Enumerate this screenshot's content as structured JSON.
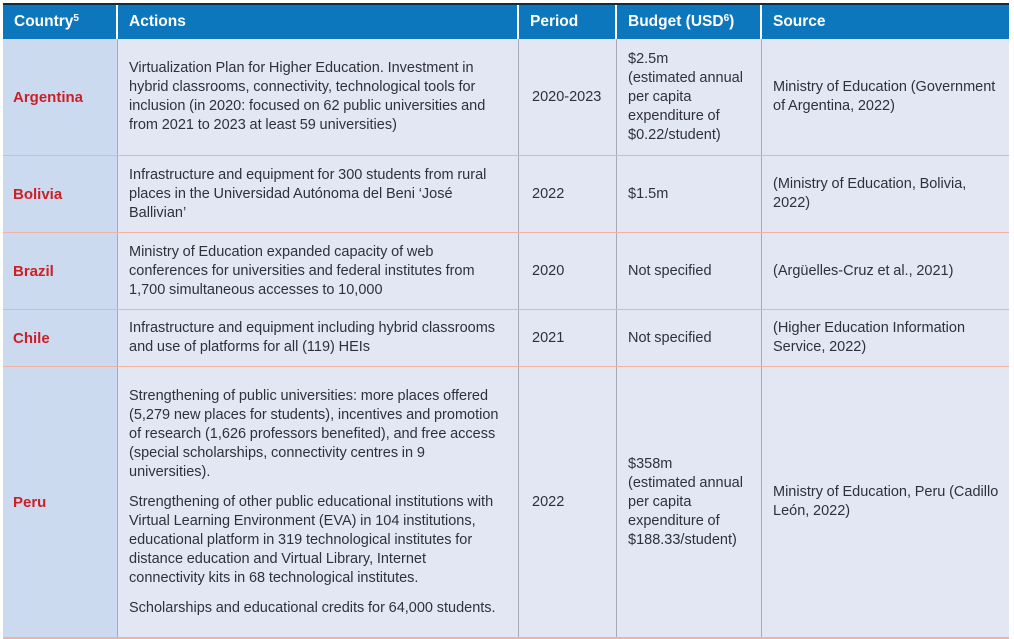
{
  "table": {
    "columns": [
      {
        "label": "Country",
        "superscript": "5",
        "suffix": ""
      },
      {
        "label": "Actions",
        "superscript": "",
        "suffix": ""
      },
      {
        "label": "Period",
        "superscript": "",
        "suffix": ""
      },
      {
        "label": "Budget (USD",
        "superscript": "6",
        "suffix": ")"
      },
      {
        "label": "Source",
        "superscript": "",
        "suffix": ""
      }
    ],
    "rows": [
      {
        "country": "Argentina",
        "actions": [
          "Virtualization Plan for Higher Education. Investment in hybrid classrooms, connectivity, technological tools for inclusion (in 2020: focused on 62 public universities and from 2021 to 2023 at least 59 universities)"
        ],
        "period": "2020-2023",
        "budget": "$2.5m\n(estimated annual per capita expenditure of $0.22/student)",
        "source": "Ministry of Education (Government of Argentina, 2022)"
      },
      {
        "country": "Bolivia",
        "actions": [
          "Infrastructure and equipment for 300 students from rural places in the Universidad Autónoma del Beni ‘José Ballivian’"
        ],
        "period": "2022",
        "budget": "$1.5m",
        "source": "(Ministry of Education, Bolivia, 2022)"
      },
      {
        "country": "Brazil",
        "actions": [
          "Ministry of Education expanded capacity of web conferences for universities and federal institutes from 1,700 simultaneous accesses to 10,000"
        ],
        "period": "2020",
        "budget": "Not specified",
        "source": "(Argüelles-Cruz et al., 2021)"
      },
      {
        "country": "Chile",
        "actions": [
          "Infrastructure and equipment including hybrid classrooms and use of platforms for all (119) HEIs"
        ],
        "period": "2021",
        "budget": "Not specified",
        "source": "(Higher Education Information Service, 2022)"
      },
      {
        "country": "Peru",
        "actions": [
          "Strengthening of public universities: more places offered (5,279 new places for students), incentives and promotion of research (1,626 professors benefited), and free access (special scholarships, connectivity centres in 9 universities).",
          "Strengthening of other public educational institutions with Virtual Learning Environment (EVA) in 104 institutions, educational platform in 319 technological institutes for distance education and Virtual Library, Internet connectivity kits in 68 technological institutes.",
          "Scholarships and educational credits for 64,000 students."
        ],
        "period": "2022",
        "budget": "$358m\n(estimated annual per capita expenditure of $188.33/student)",
        "source": "Ministry of Education, Peru (Cadillo León, 2022)"
      }
    ]
  },
  "colors": {
    "header_bg": "#0d77bd",
    "header_text": "#ffffff",
    "country_col_bg": "#ccdaef",
    "cell_bg": "#e3e7f4",
    "country_text": "#cb2027",
    "body_text": "#30303a",
    "row_divider": "#f0b3a2",
    "col_divider": "#a6aab8",
    "top_border": "#122a44"
  }
}
